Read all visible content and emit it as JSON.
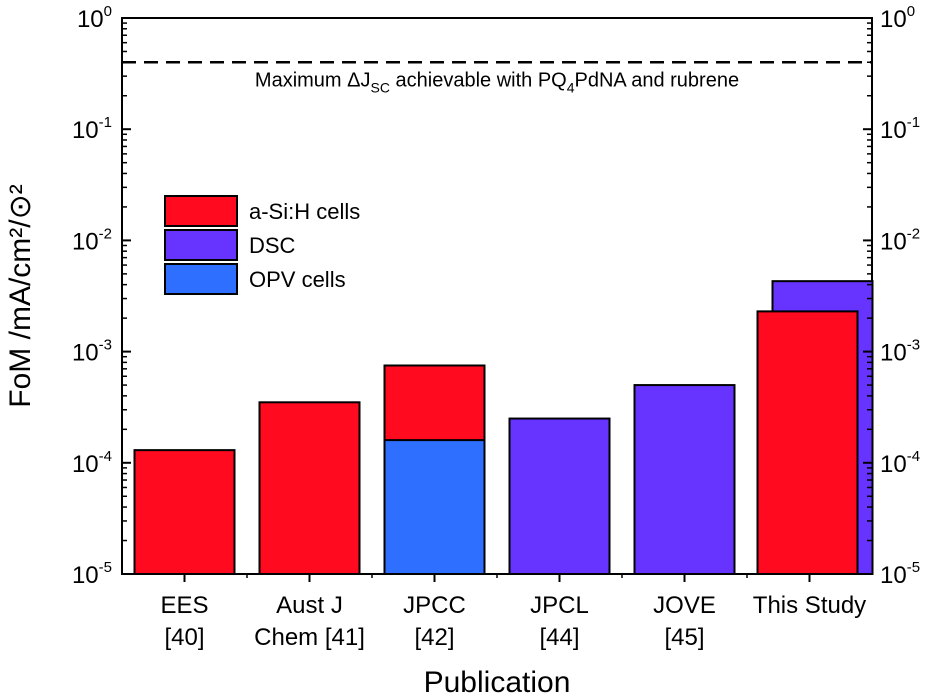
{
  "chart_data": {
    "type": "bar",
    "xlabel": "Publication",
    "ylabel": "FoM /mA/cm²/⊙²",
    "yscale": "log",
    "ylim": [
      1e-05,
      1
    ],
    "categories": [
      [
        "EES",
        "[40]"
      ],
      [
        "Aust J",
        "Chem [41]"
      ],
      [
        "JPCC",
        "[42]"
      ],
      [
        "JPCL",
        "[44]"
      ],
      [
        "JOVE",
        "[45]"
      ],
      [
        "This Study"
      ]
    ],
    "y_tick_labels": [
      {
        "value": 1e-05,
        "base": "10",
        "exp": "-5"
      },
      {
        "value": 0.0001,
        "base": "10",
        "exp": "-4"
      },
      {
        "value": 0.001,
        "base": "10",
        "exp": "-3"
      },
      {
        "value": 0.01,
        "base": "10",
        "exp": "-2"
      },
      {
        "value": 0.1,
        "base": "10",
        "exp": "-1"
      },
      {
        "value": 1,
        "base": "10",
        "exp": "0"
      }
    ],
    "series": [
      {
        "name": "a-Si:H cells",
        "color": "#ff0a1e",
        "values": [
          0.00013,
          0.00035,
          0.00075,
          null,
          null,
          0.0023
        ]
      },
      {
        "name": "DSC",
        "color": "#6633ff",
        "values": [
          null,
          null,
          null,
          0.00025,
          0.0005,
          0.0043
        ]
      },
      {
        "name": "OPV cells",
        "color": "#2f6fff",
        "values": [
          null,
          null,
          0.00016,
          null,
          null,
          null
        ]
      }
    ],
    "reference_line": {
      "value": 0.4,
      "style": "dashed",
      "label_parts": [
        "Maximum ΔJ",
        "SC",
        " achievable with PQ",
        "4",
        "PdNA and rubrene"
      ]
    },
    "legend": {
      "placement": "upper-left"
    },
    "grid": false
  }
}
